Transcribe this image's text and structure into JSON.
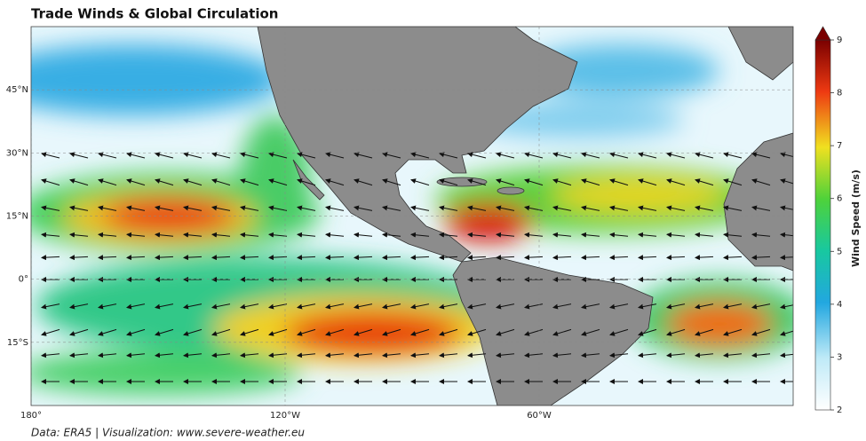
{
  "map": {
    "title": "Trade Winds & Global Circulation",
    "lonlim": [
      -180,
      0
    ],
    "latlim": [
      -30,
      60
    ],
    "lonticks": [
      {
        "value": -180,
        "label": "180°"
      },
      {
        "value": -120,
        "label": "120°W"
      },
      {
        "value": -60,
        "label": "60°W"
      }
    ],
    "latticks": [
      {
        "value": 45,
        "label": "45°N"
      },
      {
        "value": 30,
        "label": "30°N"
      },
      {
        "value": 15,
        "label": "15°N"
      },
      {
        "value": 0,
        "label": "0°"
      },
      {
        "value": -15,
        "label": "15°S"
      }
    ],
    "colorbar": {
      "label": "Wind Speed (m/s)",
      "lim": [
        2,
        9
      ],
      "ticks": [
        2,
        3,
        4,
        5,
        6,
        7,
        8,
        9
      ]
    },
    "source": "Data: ERA5 | Visualization: www.severe-weather.eu"
  }
}
